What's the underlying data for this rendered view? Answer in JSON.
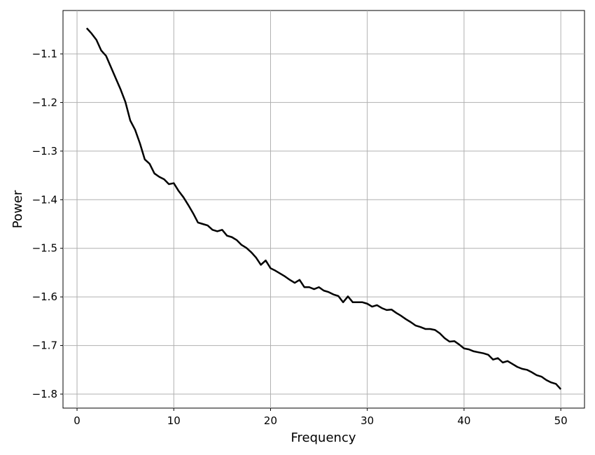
{
  "chart_data": {
    "type": "line",
    "xlabel": "Frequency",
    "ylabel": "Power",
    "x": [
      1,
      1.5,
      2,
      2.5,
      3,
      3.5,
      4,
      4.5,
      5,
      5.5,
      6,
      6.5,
      7,
      7.5,
      8,
      8.5,
      9,
      9.5,
      10,
      10.5,
      11,
      11.5,
      12,
      12.5,
      13,
      13.5,
      14,
      14.5,
      15,
      15.5,
      16,
      16.5,
      17,
      17.5,
      18,
      18.5,
      19,
      19.5,
      20,
      20.5,
      21,
      21.5,
      22,
      22.5,
      23,
      23.5,
      24,
      24.5,
      25,
      25.5,
      26,
      26.5,
      27,
      27.5,
      28,
      28.5,
      29,
      29.5,
      30,
      30.5,
      31,
      31.5,
      32,
      32.5,
      33,
      33.5,
      34,
      34.5,
      35,
      35.5,
      36,
      36.5,
      37,
      37.5,
      38,
      38.5,
      39,
      39.5,
      40,
      40.5,
      41,
      41.5,
      42,
      42.5,
      43,
      43.5,
      44,
      44.5,
      45,
      45.5,
      46,
      46.5,
      47,
      47.5,
      48,
      48.5,
      49,
      49.5,
      50
    ],
    "series": [
      {
        "color": "#000000",
        "values": [
          -1.047,
          -1.058,
          -1.071,
          -1.093,
          -1.104,
          -1.127,
          -1.15,
          -1.173,
          -1.199,
          -1.237,
          -1.256,
          -1.284,
          -1.317,
          -1.326,
          -1.346,
          -1.353,
          -1.358,
          -1.368,
          -1.366,
          -1.382,
          -1.395,
          -1.411,
          -1.428,
          -1.447,
          -1.45,
          -1.453,
          -1.462,
          -1.465,
          -1.462,
          -1.474,
          -1.477,
          -1.483,
          -1.493,
          -1.499,
          -1.508,
          -1.519,
          -1.534,
          -1.525,
          -1.541,
          -1.546,
          -1.552,
          -1.558,
          -1.565,
          -1.571,
          -1.565,
          -1.58,
          -1.58,
          -1.584,
          -1.58,
          -1.587,
          -1.59,
          -1.595,
          -1.598,
          -1.611,
          -1.599,
          -1.611,
          -1.611,
          -1.611,
          -1.614,
          -1.62,
          -1.617,
          -1.623,
          -1.627,
          -1.626,
          -1.633,
          -1.639,
          -1.646,
          -1.652,
          -1.659,
          -1.662,
          -1.666,
          -1.666,
          -1.668,
          -1.675,
          -1.685,
          -1.692,
          -1.691,
          -1.698,
          -1.706,
          -1.708,
          -1.712,
          -1.714,
          -1.716,
          -1.719,
          -1.729,
          -1.726,
          -1.735,
          -1.732,
          -1.738,
          -1.744,
          -1.748,
          -1.75,
          -1.755,
          -1.761,
          -1.764,
          -1.771,
          -1.776,
          -1.779,
          -1.79
        ]
      }
    ],
    "xlim": [
      -1.45,
      52.45
    ],
    "ylim": [
      -1.8288,
      -1.0107
    ],
    "xticks": [
      0,
      10,
      20,
      30,
      40,
      50
    ],
    "yticks": [
      {
        "value": -1.8,
        "label": "−1.8"
      },
      {
        "value": -1.7,
        "label": "−1.7"
      },
      {
        "value": -1.6,
        "label": "−1.6"
      },
      {
        "value": -1.5,
        "label": "−1.5"
      },
      {
        "value": -1.4,
        "label": "−1.4"
      },
      {
        "value": -1.3,
        "label": "−1.3"
      },
      {
        "value": -1.2,
        "label": "−1.2"
      },
      {
        "value": -1.1,
        "label": "−1.1"
      }
    ],
    "grid": true
  }
}
